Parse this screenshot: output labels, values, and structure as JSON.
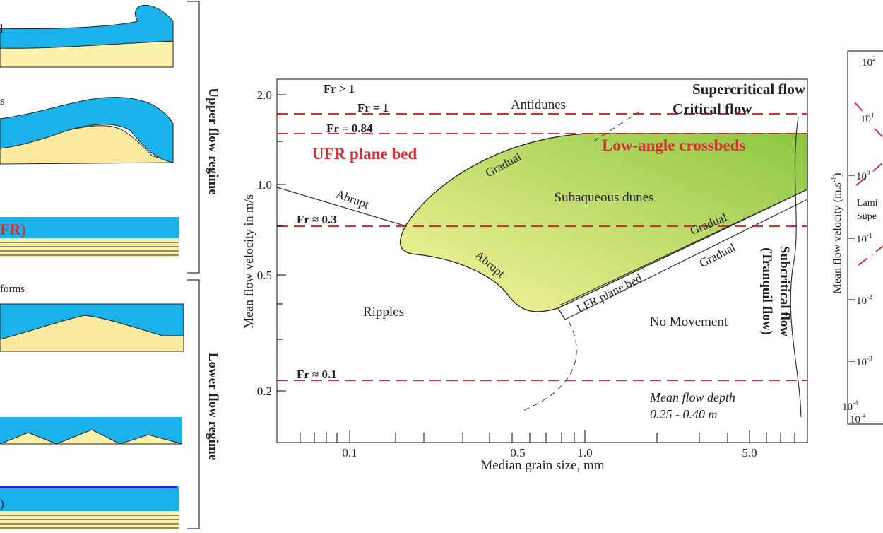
{
  "left_panel": {
    "partial_labels": [
      "l",
      "s",
      "FR)",
      "forms",
      ")"
    ],
    "upper_bracket": "Upper flow regime",
    "lower_bracket": "Lower flow regime"
  },
  "center_plot": {
    "y_axis_label": "Mean flow velocity in m/s",
    "x_axis_label": "Median grain size, mm",
    "y_tick_labels": [
      "2.0",
      "1.0",
      "0.5",
      "0.2"
    ],
    "x_tick_labels": [
      "0.1",
      "0.5",
      "1.0",
      "5.0"
    ],
    "froude_labels": [
      "Fr > 1",
      "Fr = 1",
      "Fr = 0.84",
      "Fr ≈ 0.3",
      "Fr ≈ 0.1"
    ],
    "flow_labels": [
      "Supercritical flow",
      "Critical flow"
    ],
    "red_labels": [
      "UFR plane bed",
      "Low-angle crossbeds"
    ],
    "regions": [
      "Antidunes",
      "Subaqueous dunes",
      "Ripples",
      "No Movement"
    ],
    "boundary_labels": [
      "Gradual",
      "Abrupt",
      "Abrupt",
      "Gradual",
      "Gradual",
      "LFR plane bed"
    ],
    "subcritical": [
      "Subcritical flow",
      "(Tranquil flow)"
    ],
    "depth_note": [
      "Mean flow depth",
      "0.25 - 0.40 m"
    ]
  },
  "right_panel": {
    "y_axis_label": "Mean flow velocity (m.s",
    "y_axis_label_exp": "-1",
    "y_ticks": [
      {
        "base": "10",
        "exp": "2"
      },
      {
        "base": "10",
        "exp": "1"
      },
      {
        "base": "10",
        "exp": "0"
      },
      {
        "base": "10",
        "exp": "-1"
      },
      {
        "base": "10",
        "exp": "-2"
      },
      {
        "base": "10",
        "exp": "-3"
      },
      {
        "base": "10",
        "exp": "-4"
      }
    ],
    "x_tick": {
      "base": "10",
      "exp": "-4"
    },
    "partial_labels": [
      "Lami",
      "Supe"
    ]
  }
}
